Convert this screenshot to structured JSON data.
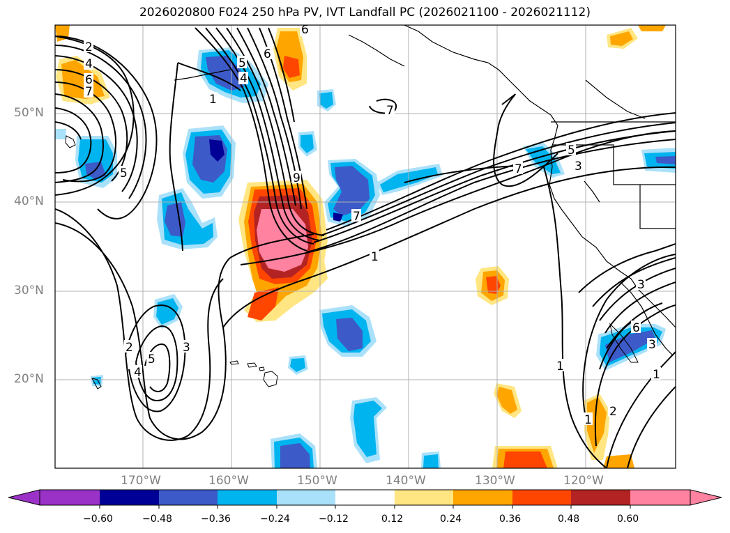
{
  "title": "2026020800 F024 250 hPa PV, IVT Landfall PC (2026021100 - 2026021112)",
  "axes": {
    "lon_labels": [
      "170°W",
      "160°W",
      "150°W",
      "140°W",
      "130°W",
      "120°W"
    ],
    "lat_labels": [
      "50°N",
      "40°N",
      "30°N",
      "20°N"
    ],
    "grid": true
  },
  "colorbar": {
    "tick_labels": [
      "−0.60",
      "−0.48",
      "−0.36",
      "−0.24",
      "−0.12",
      "0.12",
      "0.24",
      "0.36",
      "0.48",
      "0.60"
    ],
    "colors": [
      "#9b32c8",
      "#000096",
      "#3c5ac8",
      "#00b4f0",
      "#aae1fa",
      "#ffffff",
      "#ffe682",
      "#ffa500",
      "#ff4600",
      "#b42323",
      "#ff82a0"
    ],
    "extend": "both"
  },
  "contour_labels": [
    "2",
    "4",
    "6",
    "7",
    "5",
    "5",
    "6",
    "4",
    "1",
    "6",
    "9",
    "7",
    "1",
    "7",
    "5",
    "3",
    "7",
    "1",
    "3",
    "2",
    "4",
    "5",
    "3",
    "6",
    "3",
    "1",
    "2",
    "1"
  ]
}
